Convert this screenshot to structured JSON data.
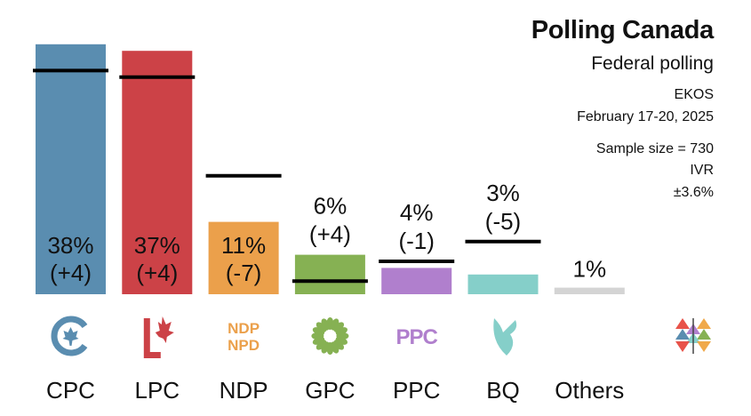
{
  "header": {
    "title": "Polling Canada",
    "subtitle": "Federal polling",
    "pollster": "EKOS",
    "dates": "February 17-20, 2025",
    "sample": "Sample size = 730",
    "method": "IVR",
    "margin": "±3.6%"
  },
  "chart_data": {
    "type": "bar",
    "categories": [
      "CPC",
      "LPC",
      "NDP",
      "GPC",
      "PPC",
      "BQ",
      "Others"
    ],
    "values": [
      38,
      37,
      11,
      6,
      4,
      3,
      1
    ],
    "previous": [
      34,
      33,
      18,
      2,
      5,
      8,
      null
    ],
    "value_labels": [
      "38%",
      "37%",
      "11%",
      "6%",
      "4%",
      "3%",
      "1%"
    ],
    "change_labels": [
      "(+4)",
      "(+4)",
      "(-7)",
      "(+4)",
      "(-1)",
      "(-5)",
      ""
    ],
    "colors": [
      "#5a8db0",
      "#cc4247",
      "#eba04b",
      "#86b153",
      "#b07fcd",
      "#85cfc9",
      "#d4d4d4"
    ],
    "logo_icons": [
      "cpc-logo-icon",
      "lpc-logo-icon",
      "ndp-logo-icon",
      "gpc-logo-icon",
      "ppc-logo-icon",
      "bq-logo-icon",
      "",
      "polling-canada-logo-icon"
    ],
    "logo_text": {
      "ndp": [
        "NDP",
        "NPD"
      ],
      "ppc": "PPC"
    },
    "ylim": [
      0,
      40
    ],
    "grid": false,
    "legend": "none"
  }
}
